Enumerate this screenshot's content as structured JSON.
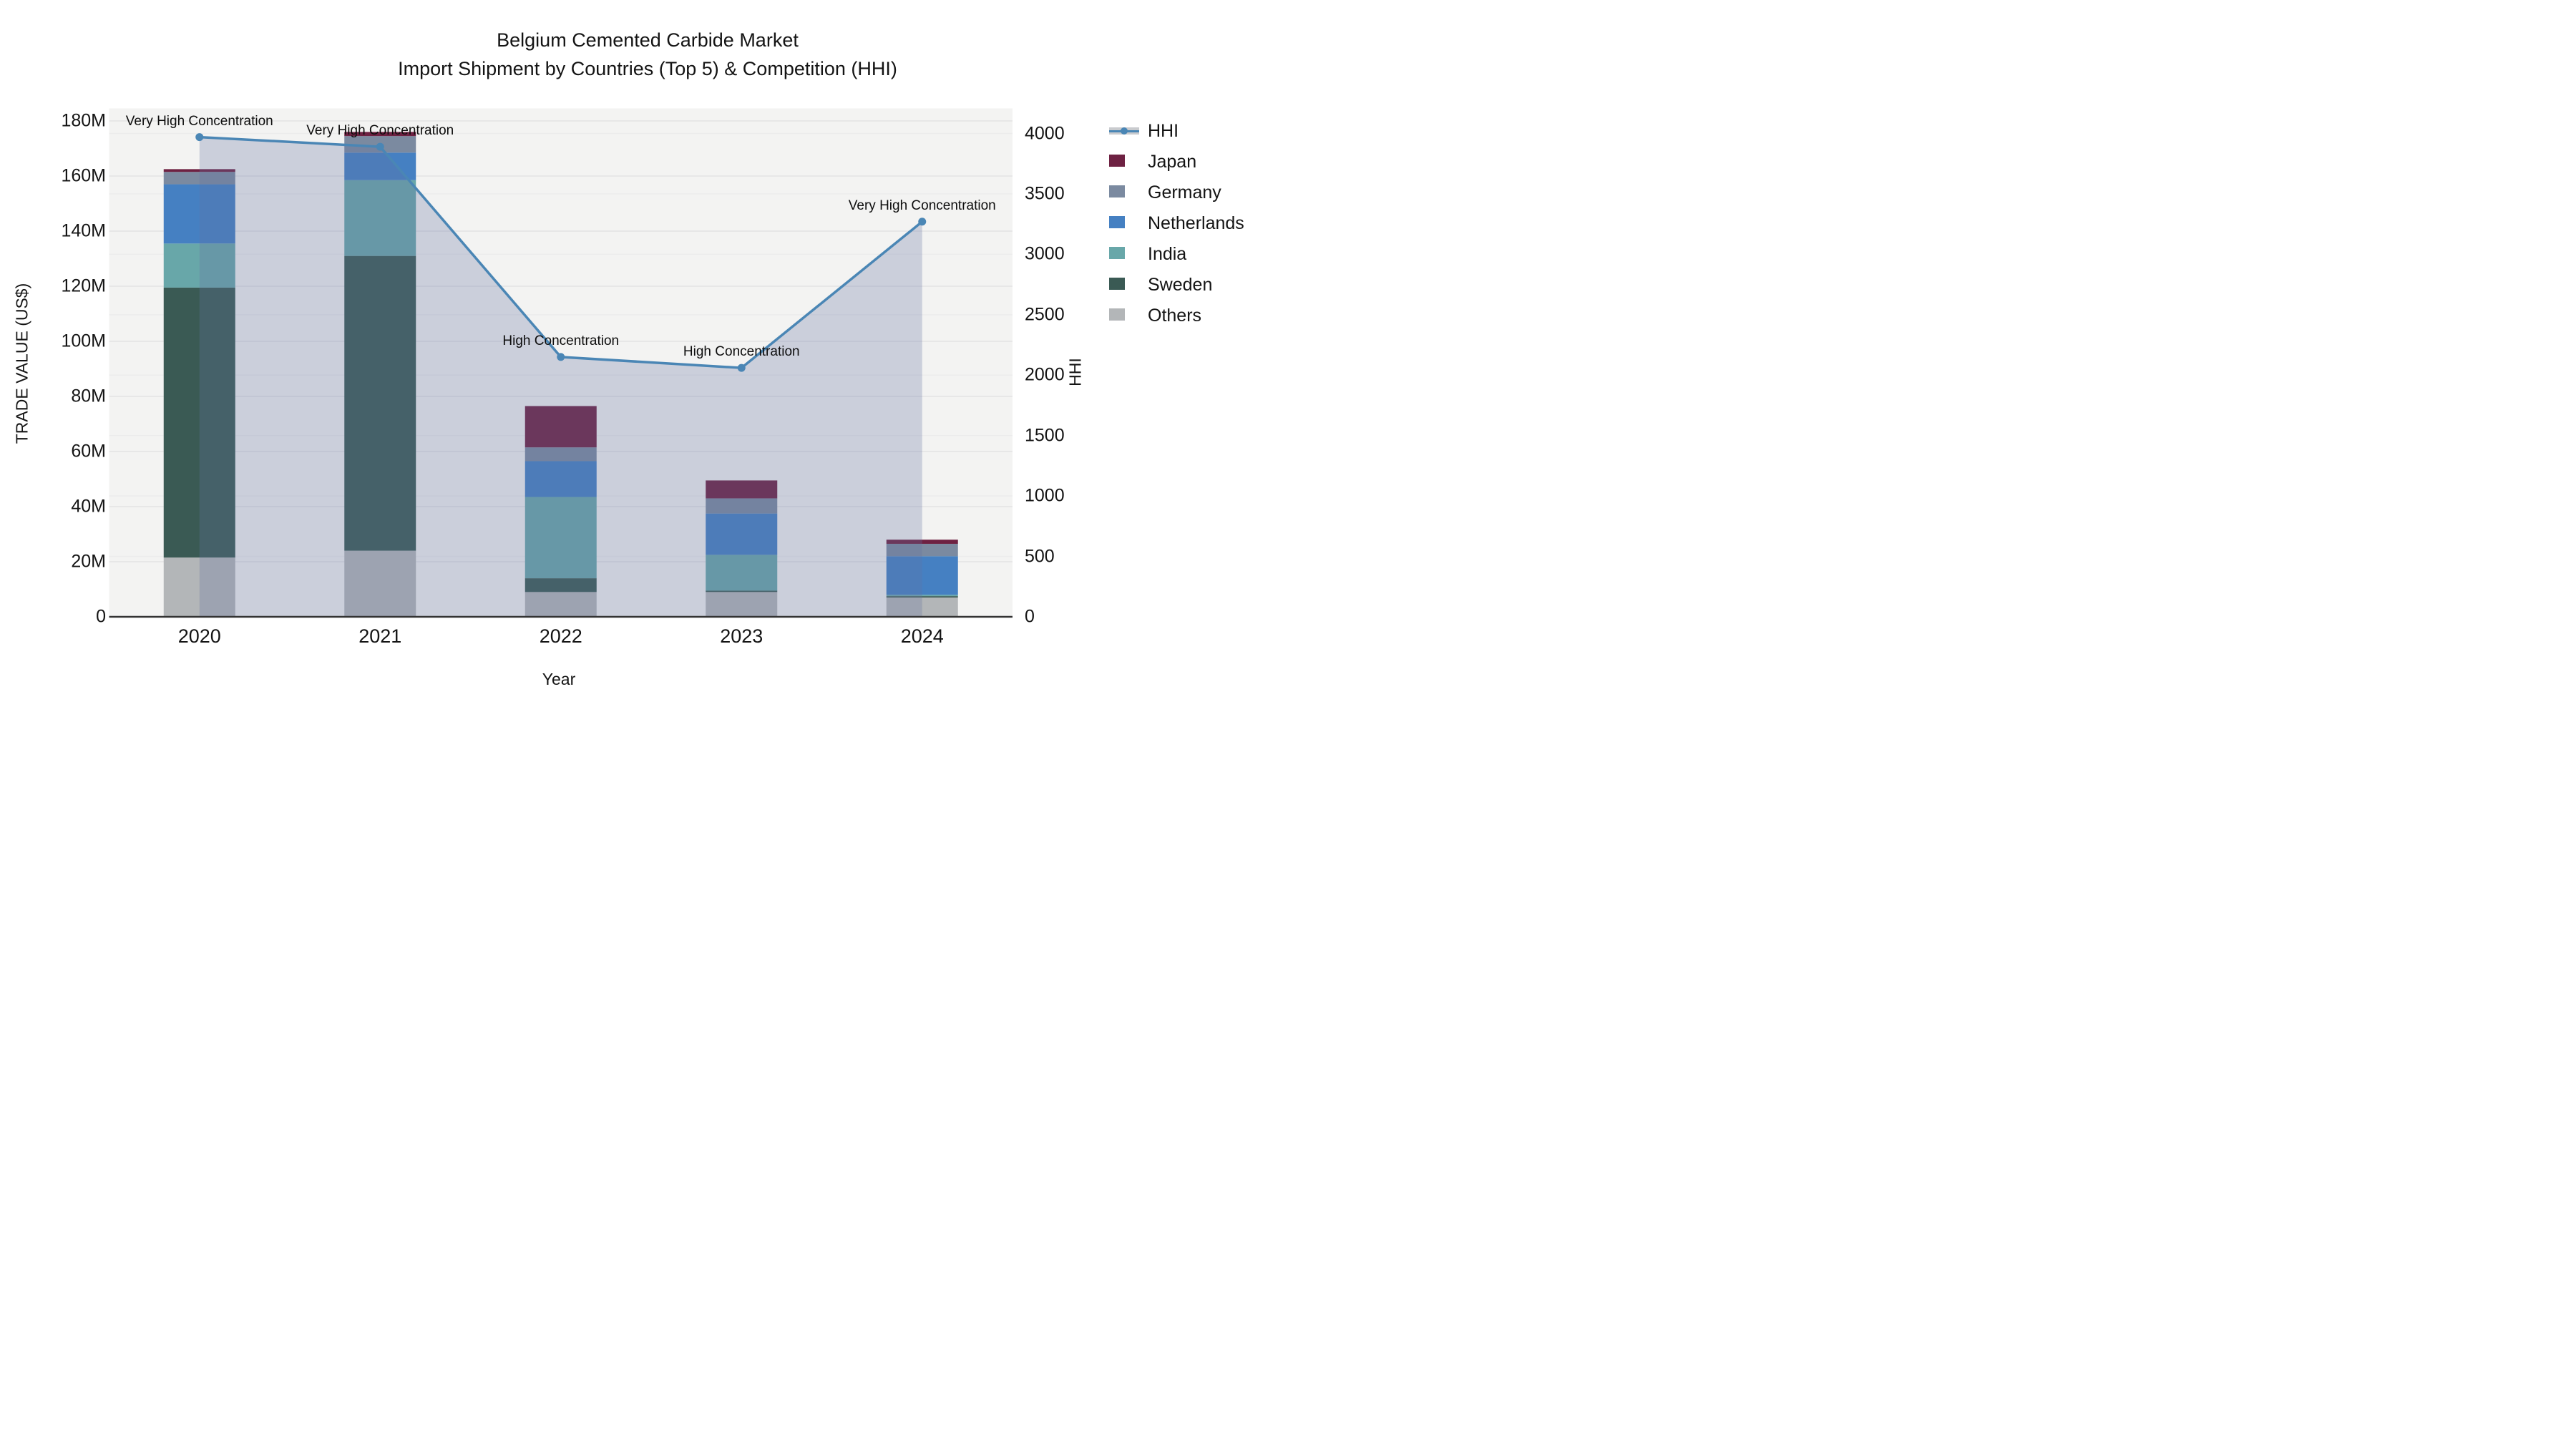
{
  "title": {
    "line1": "Belgium Cemented Carbide Market",
    "line2": "Import Shipment by Countries (Top 5) & Competition (HHI)"
  },
  "axes": {
    "left": {
      "title": "TRADE VALUE (US$)",
      "ticks": [
        "0",
        "20M",
        "40M",
        "60M",
        "80M",
        "100M",
        "120M",
        "140M",
        "160M",
        "180M"
      ]
    },
    "right": {
      "title": "HHI",
      "ticks": [
        "0",
        "500",
        "1000",
        "1500",
        "2000",
        "2500",
        "3000",
        "3500",
        "4000"
      ]
    },
    "x": {
      "title": "Year",
      "categories": [
        "2020",
        "2021",
        "2022",
        "2023",
        "2024"
      ]
    }
  },
  "legend": [
    {
      "label": "HHI",
      "color": "#4a86b5",
      "type": "line",
      "band_color": "#c9cbce"
    },
    {
      "label": "Japan",
      "color": "#6e2142",
      "type": "swatch"
    },
    {
      "label": "Germany",
      "color": "#7b8aa0",
      "type": "swatch"
    },
    {
      "label": "Netherlands",
      "color": "#4580c2",
      "type": "swatch"
    },
    {
      "label": "India",
      "color": "#68a7a9",
      "type": "swatch"
    },
    {
      "label": "Sweden",
      "color": "#3a5a54",
      "type": "swatch"
    },
    {
      "label": "Others",
      "color": "#b3b6b8",
      "type": "swatch"
    }
  ],
  "annotations": [
    {
      "year": "2020",
      "text": "Very High Concentration"
    },
    {
      "year": "2021",
      "text": "Very High Concentration"
    },
    {
      "year": "2022",
      "text": "High Concentration"
    },
    {
      "year": "2023",
      "text": "High Concentration"
    },
    {
      "year": "2024",
      "text": "Very High Concentration"
    }
  ],
  "chart_data": {
    "type": "bar",
    "subtype": "stacked-bars-with-line",
    "title": "Belgium Cemented Carbide Market — Import Shipment by Countries (Top 5) & Competition (HHI)",
    "xlabel": "Year",
    "ylabel_left": "TRADE VALUE (US$)",
    "ylabel_right": "HHI",
    "categories": [
      "2020",
      "2021",
      "2022",
      "2023",
      "2024"
    ],
    "bar_value_unit": "million US$",
    "stack_order_bottom_to_top": [
      "Others",
      "Sweden",
      "India",
      "Netherlands",
      "Germany",
      "Japan"
    ],
    "series": [
      {
        "name": "Japan",
        "values": [
          1.0,
          1.5,
          15.0,
          6.5,
          1.5
        ]
      },
      {
        "name": "Germany",
        "values": [
          4.5,
          6.0,
          5.0,
          5.5,
          4.5
        ]
      },
      {
        "name": "Netherlands",
        "values": [
          21.5,
          10.0,
          13.0,
          15.0,
          14.0
        ]
      },
      {
        "name": "India",
        "values": [
          16.0,
          27.5,
          29.5,
          13.0,
          0.5
        ]
      },
      {
        "name": "Sweden",
        "values": [
          98.0,
          107.0,
          5.0,
          0.5,
          0.5
        ]
      },
      {
        "name": "Others",
        "values": [
          21.5,
          24.0,
          9.0,
          9.0,
          7.0
        ]
      }
    ],
    "line_series": {
      "name": "HHI",
      "values": [
        3970,
        3890,
        2150,
        2060,
        3270
      ],
      "area_fill": true
    },
    "ylim_left_millions": [
      0,
      184.5
    ],
    "ylim_right": [
      0,
      4207
    ],
    "grid": true,
    "legend_position": "outside-right-top",
    "plot_background": "#f3f3f2",
    "area_fill_color": "rgba(100,115,160,0.28)"
  }
}
